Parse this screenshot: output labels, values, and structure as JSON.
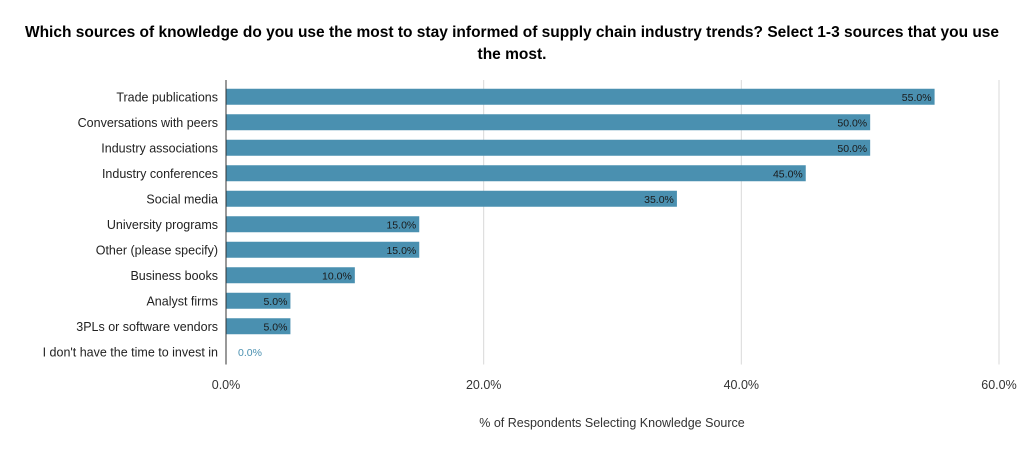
{
  "chart_data": {
    "type": "bar",
    "orientation": "horizontal",
    "title": "Which sources of knowledge do you use the most to stay informed of supply chain industry trends? Select 1-3 sources that you use the most.",
    "xlabel": "% of Respondents Selecting Knowledge Source",
    "ylabel": "",
    "xlim": [
      0,
      60
    ],
    "x_ticks": [
      "0.0%",
      "20.0%",
      "40.0%",
      "60.0%"
    ],
    "grid": "vertical",
    "bar_color": "#4a90b0",
    "categories": [
      "Trade publications",
      "Conversations with peers",
      "Industry associations",
      "Industry conferences",
      "Social media",
      "University programs",
      "Other (please specify)",
      "Business books",
      "Analyst firms",
      "3PLs or software vendors",
      "I don't have the time to invest in"
    ],
    "values": [
      55.0,
      50.0,
      50.0,
      45.0,
      35.0,
      15.0,
      15.0,
      10.0,
      5.0,
      5.0,
      0.0
    ],
    "data_labels": [
      "55.0%",
      "50.0%",
      "50.0%",
      "45.0%",
      "35.0%",
      "15.0%",
      "15.0%",
      "10.0%",
      "5.0%",
      "5.0%",
      "0.0%"
    ]
  }
}
